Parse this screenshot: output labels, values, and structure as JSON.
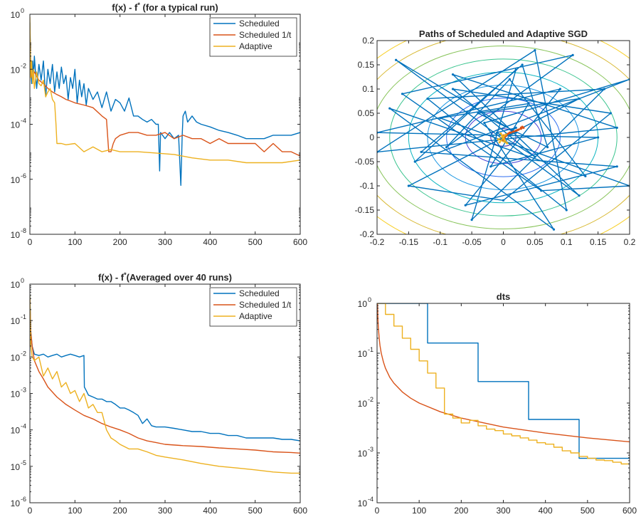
{
  "colors": {
    "scheduled": "#0072BD",
    "scheduled_1t": "#D95319",
    "adaptive": "#EDB120",
    "axis": "#262626"
  },
  "chart_data": [
    {
      "id": "typical",
      "type": "line",
      "title_main": "f(x) - f",
      "title_sup": "*",
      "title_rest": " (for a typical run)",
      "xlim": [
        0,
        600
      ],
      "ylim": [
        1e-08,
        1
      ],
      "yscale": "log",
      "xticks": [
        0,
        100,
        200,
        300,
        400,
        500,
        600
      ],
      "ytick_exponents": [
        -8,
        -6,
        -4,
        -2,
        0
      ],
      "legend": "top-right",
      "series": [
        {
          "name": "Scheduled",
          "color": "#0072BD",
          "x": [
            0,
            2,
            4,
            6,
            8,
            10,
            15,
            20,
            25,
            30,
            35,
            40,
            45,
            50,
            55,
            60,
            65,
            70,
            75,
            80,
            85,
            90,
            95,
            100,
            105,
            110,
            115,
            120,
            125,
            130,
            140,
            150,
            160,
            170,
            180,
            190,
            200,
            210,
            220,
            230,
            240,
            250,
            260,
            270,
            280,
            285,
            288,
            290,
            300,
            310,
            320,
            330,
            335,
            338,
            340,
            345,
            350,
            360,
            370,
            380,
            400,
            420,
            440,
            460,
            480,
            500,
            520,
            540,
            560,
            580,
            600
          ],
          "y": [
            0.5,
            0.01,
            0.003,
            0.02,
            0.005,
            0.03,
            0.002,
            0.015,
            0.004,
            0.02,
            0.001,
            0.01,
            0.003,
            0.015,
            0.0015,
            0.008,
            0.002,
            0.012,
            0.003,
            0.006,
            0.0008,
            0.005,
            0.002,
            0.01,
            0.0006,
            0.004,
            0.001,
            0.003,
            0.0005,
            0.002,
            0.0008,
            0.0015,
            0.0004,
            0.0015,
            0.0003,
            0.0008,
            0.0006,
            0.0003,
            0.0009,
            0.0002,
            0.0002,
            0.00015,
            0.00012,
            0.00015,
            0.0001,
            0.0001,
            2e-06,
            5e-05,
            3e-05,
            5e-05,
            3e-05,
            4e-05,
            6e-07,
            4e-05,
            0.0002,
            0.0003,
            0.00012,
            0.0002,
            0.00012,
            0.0001,
            8e-05,
            6e-05,
            5e-05,
            4e-05,
            3e-05,
            3e-05,
            3e-05,
            4e-05,
            4e-05,
            4e-05,
            5e-05
          ]
        },
        {
          "name": "Scheduled 1/t",
          "color": "#D95319",
          "x": [
            0,
            2,
            5,
            10,
            20,
            30,
            40,
            50,
            60,
            70,
            80,
            90,
            100,
            120,
            140,
            160,
            170,
            175,
            180,
            185,
            190,
            200,
            220,
            240,
            260,
            280,
            300,
            320,
            340,
            360,
            380,
            400,
            420,
            440,
            460,
            480,
            500,
            520,
            540,
            560,
            580,
            600
          ],
          "y": [
            0.3,
            0.01,
            0.005,
            0.008,
            0.004,
            0.003,
            0.002,
            0.0015,
            0.0012,
            0.001,
            0.0008,
            0.0007,
            0.0006,
            0.0005,
            0.0004,
            0.0002,
            0.00015,
            1e-05,
            1e-05,
            2e-05,
            3e-05,
            4e-05,
            5e-05,
            5e-05,
            4e-05,
            4e-05,
            5e-05,
            3e-05,
            4e-05,
            3e-05,
            3e-05,
            2e-05,
            3e-05,
            2e-05,
            2e-05,
            2e-05,
            2e-05,
            1e-05,
            2e-05,
            1e-05,
            1e-05,
            7e-06
          ]
        },
        {
          "name": "Adaptive",
          "color": "#EDB120",
          "x": [
            0,
            2,
            4,
            6,
            8,
            10,
            15,
            20,
            25,
            30,
            35,
            40,
            45,
            50,
            55,
            58,
            60,
            70,
            80,
            100,
            120,
            140,
            160,
            180,
            200,
            240,
            280,
            320,
            360,
            400,
            440,
            480,
            520,
            560,
            600
          ],
          "y": [
            0.8,
            0.005,
            0.02,
            0.003,
            0.01,
            0.002,
            0.008,
            0.003,
            0.0025,
            0.004,
            0.001,
            0.0015,
            0.002,
            0.0008,
            0.0006,
            0.0001,
            2e-05,
            2e-05,
            1.8e-05,
            2e-05,
            1e-05,
            1.5e-05,
            1e-05,
            1.2e-05,
            1e-05,
            1e-05,
            9e-06,
            8e-06,
            6e-06,
            5e-06,
            5e-06,
            4e-06,
            4e-06,
            4e-06,
            5e-06
          ]
        }
      ]
    },
    {
      "id": "paths",
      "type": "line",
      "title": "Paths of Scheduled and Adaptive SGD",
      "xlim": [
        -0.2,
        0.2
      ],
      "ylim": [
        -0.2,
        0.2
      ],
      "xticks": [
        -0.2,
        -0.15,
        -0.1,
        -0.05,
        0,
        0.05,
        0.1,
        0.15,
        0.2
      ],
      "yticks": [
        -0.2,
        -0.15,
        -0.1,
        -0.05,
        0,
        0.05,
        0.1,
        0.15,
        0.2
      ],
      "xtick_labels": [
        "-0.2",
        "-0.15",
        "-0.1",
        "-0.05",
        "0",
        "0.05",
        "0.1",
        "0.15",
        "0.2"
      ],
      "ytick_labels": [
        "-0.2",
        "-0.15",
        "-0.1",
        "-0.05",
        "0",
        "0.05",
        "0.1",
        "0.15",
        "0.2"
      ],
      "contours": {
        "radii": [
          0.02,
          0.06,
          0.09,
          0.12,
          0.15,
          0.18,
          0.21,
          0.24,
          0.27
        ],
        "colors": [
          "#3e26a8",
          "#4642d8",
          "#2f6ef0",
          "#1f98e3",
          "#0cb6c0",
          "#3ac48e",
          "#88c45a",
          "#d8b934",
          "#f8d02a"
        ],
        "yscale": 0.9
      },
      "series": [
        {
          "name": "Scheduled",
          "color": "#0072BD",
          "x": [
            0,
            0.02,
            -0.17,
            0.12,
            -0.08,
            0.18,
            -0.2,
            0.05,
            0.1,
            -0.12,
            0.16,
            -0.05,
            0.02,
            -0.14,
            0.2,
            -0.03,
            0.08,
            -0.18,
            0.13,
            0.01,
            -0.09,
            0.11,
            -0.16,
            0.06,
            0.2,
            -0.1,
            0.04,
            -0.02,
            0.15,
            -0.2,
            0.09,
            -0.06,
            0.18,
            -0.13,
            0.03,
            0.07,
            -0.04,
            0.12,
            -0.15,
            0.0,
            0.17,
            -0.08,
            0.05,
            -0.01,
            0.02,
            0.0
          ],
          "y": [
            0,
            0.01,
            0.16,
            -0.12,
            0.13,
            0.02,
            -0.03,
            0.18,
            -0.15,
            0.08,
            0.1,
            -0.17,
            0.14,
            -0.05,
            0.12,
            0.03,
            -0.19,
            0.06,
            -0.08,
            0.12,
            -0.02,
            0.17,
            0.09,
            -0.11,
            -0.1,
            0.04,
            0.07,
            -0.06,
            0.0,
            0.01,
            0.1,
            -0.14,
            -0.06,
            -0.03,
            0.15,
            -0.02,
            0.05,
            0.08,
            -0.1,
            -0.13,
            0.05,
            0.1,
            -0.04,
            0.01,
            0.02,
            0.0
          ]
        },
        {
          "name": "Scheduled 1/t",
          "color": "#D95319",
          "x": [
            0,
            0.002,
            0.005,
            0.008,
            0.012,
            0.016,
            0.02,
            0.024,
            0.028,
            0.03,
            0.032,
            0.028,
            0.022,
            0.016,
            0.01,
            0.004,
            0.0
          ],
          "y": [
            -0.005,
            0.0,
            0.004,
            0.008,
            0.01,
            0.012,
            0.014,
            0.016,
            0.02,
            0.022,
            0.02,
            0.018,
            0.015,
            0.012,
            0.01,
            0.006,
            0.004
          ]
        },
        {
          "name": "Adaptive",
          "color": "#EDB120",
          "x": [
            0,
            -0.006,
            0.004,
            -0.008,
            0.006,
            -0.004,
            0.002,
            -0.002,
            0.0
          ],
          "y": [
            0,
            -0.01,
            0.006,
            -0.004,
            -0.012,
            0.008,
            -0.006,
            0.004,
            -0.002
          ]
        }
      ]
    },
    {
      "id": "averaged",
      "type": "line",
      "title_main": "f(x) - f",
      "title_sup": "*",
      "title_rest": "(Averaged over 40 runs)",
      "xlim": [
        0,
        600
      ],
      "ylim": [
        1e-06,
        1
      ],
      "yscale": "log",
      "xticks": [
        0,
        100,
        200,
        300,
        400,
        500,
        600
      ],
      "ytick_exponents": [
        -6,
        -5,
        -4,
        -3,
        -2,
        -1,
        0
      ],
      "legend": "top-right",
      "series": [
        {
          "name": "Scheduled",
          "color": "#0072BD",
          "x": [
            0,
            2,
            5,
            10,
            20,
            30,
            40,
            50,
            60,
            70,
            80,
            90,
            100,
            110,
            120,
            121,
            125,
            130,
            140,
            150,
            160,
            170,
            180,
            190,
            200,
            210,
            220,
            230,
            240,
            250,
            260,
            270,
            280,
            300,
            320,
            340,
            360,
            380,
            400,
            420,
            440,
            460,
            480,
            500,
            520,
            540,
            560,
            580,
            600
          ],
          "y": [
            0.5,
            0.05,
            0.02,
            0.012,
            0.011,
            0.012,
            0.01,
            0.011,
            0.012,
            0.01,
            0.011,
            0.012,
            0.011,
            0.01,
            0.011,
            0.0015,
            0.0012,
            0.0009,
            0.0008,
            0.0007,
            0.0007,
            0.0006,
            0.0006,
            0.0005,
            0.0004,
            0.0004,
            0.00035,
            0.0003,
            0.00025,
            0.00015,
            0.0002,
            0.00013,
            0.00012,
            0.00012,
            0.00011,
            0.0001,
            9e-05,
            9e-05,
            8e-05,
            8e-05,
            7e-05,
            7e-05,
            6e-05,
            6e-05,
            6e-05,
            6e-05,
            5.5e-05,
            5.5e-05,
            5e-05
          ]
        },
        {
          "name": "Scheduled 1/t",
          "color": "#D95319",
          "x": [
            0,
            2,
            5,
            10,
            20,
            30,
            40,
            60,
            80,
            100,
            120,
            140,
            160,
            180,
            200,
            220,
            240,
            260,
            280,
            300,
            340,
            380,
            420,
            460,
            500,
            540,
            580,
            600
          ],
          "y": [
            0.4,
            0.05,
            0.02,
            0.008,
            0.004,
            0.0025,
            0.0015,
            0.0008,
            0.0005,
            0.00035,
            0.00025,
            0.0002,
            0.00015,
            0.00012,
            0.0001,
            8e-05,
            6e-05,
            5e-05,
            4.5e-05,
            4e-05,
            3.7e-05,
            3.5e-05,
            3.2e-05,
            3e-05,
            2.8e-05,
            2.5e-05,
            2.4e-05,
            2.3e-05
          ]
        },
        {
          "name": "Adaptive",
          "color": "#EDB120",
          "x": [
            0,
            2,
            5,
            10,
            20,
            30,
            40,
            50,
            60,
            70,
            80,
            90,
            100,
            110,
            120,
            130,
            140,
            150,
            160,
            170,
            180,
            190,
            200,
            220,
            240,
            260,
            280,
            300,
            340,
            380,
            420,
            460,
            500,
            540,
            580,
            600
          ],
          "y": [
            0.5,
            0.02,
            0.01,
            0.008,
            0.01,
            0.003,
            0.005,
            0.0025,
            0.004,
            0.0015,
            0.002,
            0.001,
            0.0012,
            0.0006,
            0.001,
            0.0004,
            0.0005,
            0.0003,
            0.0003,
            0.0001,
            6e-05,
            5e-05,
            4e-05,
            3e-05,
            3e-05,
            2.5e-05,
            2e-05,
            1.8e-05,
            1.5e-05,
            1.2e-05,
            1e-05,
            9e-06,
            8e-06,
            7e-06,
            6.5e-06,
            6.5e-06
          ]
        }
      ]
    },
    {
      "id": "dts",
      "type": "line",
      "title": "dts",
      "xlim": [
        0,
        600
      ],
      "ylim": [
        0.0001,
        1
      ],
      "yscale": "log",
      "xticks": [
        0,
        100,
        200,
        300,
        400,
        500,
        600
      ],
      "ytick_exponents": [
        -4,
        -3,
        -2,
        -1,
        0
      ],
      "series": [
        {
          "name": "Scheduled",
          "color": "#0072BD",
          "step": true,
          "x": [
            0,
            120,
            120,
            240,
            240,
            360,
            360,
            480,
            480,
            600
          ],
          "y": [
            1,
            1,
            0.16,
            0.16,
            0.027,
            0.027,
            0.0047,
            0.0047,
            0.00078,
            0.00078
          ]
        },
        {
          "name": "Scheduled 1/t",
          "color": "#D95319",
          "x": [
            1,
            2,
            3,
            5,
            7,
            10,
            15,
            20,
            30,
            40,
            60,
            80,
            100,
            150,
            200,
            300,
            400,
            500,
            600
          ],
          "y": [
            1,
            0.5,
            0.33,
            0.2,
            0.143,
            0.1,
            0.067,
            0.05,
            0.033,
            0.025,
            0.0167,
            0.0125,
            0.01,
            0.0067,
            0.005,
            0.0033,
            0.0025,
            0.002,
            0.00167
          ]
        },
        {
          "name": "Adaptive",
          "color": "#EDB120",
          "step": true,
          "x": [
            0,
            20,
            20,
            40,
            40,
            60,
            60,
            80,
            80,
            100,
            100,
            120,
            120,
            140,
            140,
            160,
            160,
            180,
            180,
            200,
            200,
            220,
            220,
            240,
            240,
            260,
            260,
            280,
            280,
            300,
            300,
            320,
            320,
            340,
            340,
            360,
            360,
            380,
            380,
            400,
            400,
            420,
            420,
            440,
            440,
            460,
            460,
            480,
            480,
            500,
            500,
            520,
            520,
            540,
            540,
            560,
            560,
            580,
            580,
            600
          ],
          "y": [
            1,
            1,
            0.6,
            0.6,
            0.35,
            0.35,
            0.2,
            0.2,
            0.12,
            0.12,
            0.07,
            0.07,
            0.04,
            0.04,
            0.02,
            0.02,
            0.006,
            0.006,
            0.005,
            0.005,
            0.004,
            0.004,
            0.0045,
            0.0045,
            0.0035,
            0.0035,
            0.003,
            0.003,
            0.0028,
            0.0028,
            0.0024,
            0.0024,
            0.0022,
            0.0022,
            0.002,
            0.002,
            0.0018,
            0.0018,
            0.0016,
            0.0016,
            0.0015,
            0.0015,
            0.0013,
            0.0013,
            0.0011,
            0.0011,
            0.001,
            0.001,
            0.00085,
            0.00085,
            0.00078,
            0.00078,
            0.00072,
            0.00072,
            0.0007,
            0.0007,
            0.00065,
            0.00065,
            0.0006,
            0.0006
          ]
        }
      ]
    }
  ]
}
